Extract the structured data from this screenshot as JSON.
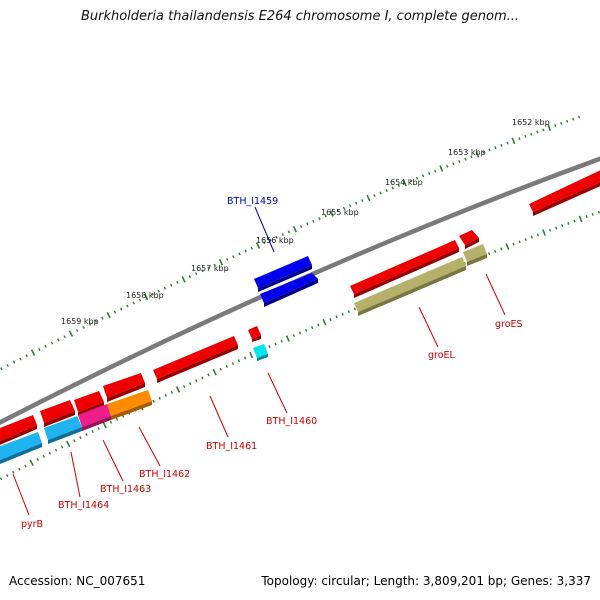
{
  "title": "Burkholderia thailandensis E264 chromosome I, complete genom...",
  "footer": {
    "accession": "Accession: NC_007651",
    "topology": "Topology: circular; Length: 3,809,201 bp; Genes: 3,337"
  },
  "scale_labels": [
    "1652 kbp",
    "1653 kbp",
    "1654 kbp",
    "1655 kbp",
    "1656 kbp",
    "1657 kbp",
    "1658 kbp",
    "1659 kbp"
  ],
  "gene_labels": [
    "BTH_I1459",
    "BTH_I1460",
    "BTH_I1461",
    "BTH_I1462",
    "BTH_I1463",
    "BTH_I1464",
    "pyrB",
    "groEL",
    "groES"
  ],
  "colors": {
    "backbone": "#7a7a7a",
    "tick": "#2e7d32",
    "forward_red": "#ee0000",
    "reverse_red": "#ee0000",
    "highlight_blue": "#0000ee",
    "cyan": "#00e5ee",
    "sky": "#1fb4f0",
    "magenta": "#ee1d8c",
    "orange": "#ff8c00",
    "olive": "#b5b06a",
    "label_red": "#cc0000",
    "label_blue": "#0000bb"
  }
}
